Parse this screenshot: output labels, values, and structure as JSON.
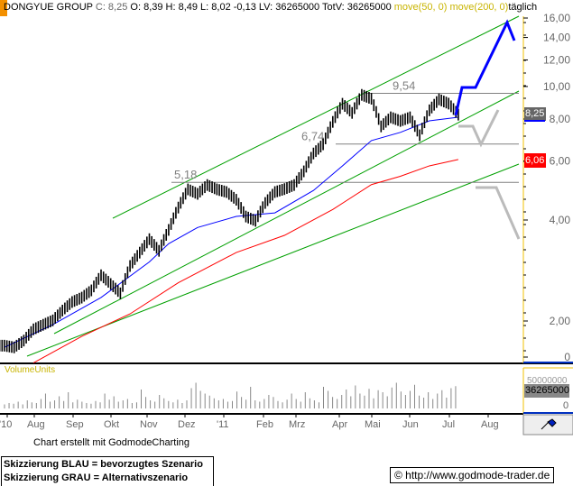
{
  "header": {
    "name": "DONGYUE GROUP",
    "c_label": "C: 8,25",
    "rest": "O: 8,39 H: 8,49 L: 8,02 -0,13 LV: 36265000 TotV: 36265000",
    "ma50": "move(50, 0)",
    "ma200": "move(200, 0)",
    "period": "täglich"
  },
  "chart_data": {
    "type": "line",
    "title": "DONGYUE GROUP",
    "yticks": [
      "16,00",
      "14,00",
      "12,00",
      "10,00",
      "8,00",
      "6,00",
      "4,00",
      "2,00",
      "0"
    ],
    "ytick_values": [
      16,
      14,
      12,
      10,
      8,
      6,
      4,
      2,
      0
    ],
    "xticks": [
      "'10",
      "Aug",
      "Sep",
      "Okt",
      "Nov",
      "Dez",
      "'11",
      "Feb",
      "Mrz",
      "Apr",
      "Mai",
      "Jun",
      "Jul",
      "Aug"
    ],
    "close": [
      1.69,
      1.67,
      1.75,
      1.89,
      1.95,
      2.01,
      2.15,
      2.28,
      2.35,
      2.47,
      2.74,
      2.58,
      2.42,
      2.92,
      3.2,
      3.51,
      3.24,
      3.74,
      4.36,
      4.94,
      4.79,
      5.09,
      4.94,
      4.85,
      4.6,
      4.1,
      3.98,
      4.5,
      4.85,
      4.95,
      5.09,
      5.59,
      6.32,
      6.73,
      7.85,
      8.89,
      8.35,
      9.45,
      9.2,
      7.61,
      8.1,
      7.9,
      8.1,
      7.16,
      8.5,
      9.16,
      8.9,
      8.25
    ],
    "ma50": [
      [
        0,
        1.67
      ],
      [
        5,
        1.95
      ],
      [
        10,
        2.35
      ],
      [
        15,
        3.0
      ],
      [
        17,
        3.4
      ],
      [
        20,
        3.8
      ],
      [
        24,
        4.1
      ],
      [
        28,
        4.2
      ],
      [
        32,
        4.9
      ],
      [
        35,
        5.8
      ],
      [
        38,
        6.9
      ],
      [
        41,
        7.3
      ],
      [
        44,
        7.9
      ],
      [
        47,
        8.1
      ]
    ],
    "ma200": [
      [
        3,
        1.5
      ],
      [
        8,
        1.8
      ],
      [
        13,
        2.1
      ],
      [
        18,
        2.6
      ],
      [
        24,
        3.2
      ],
      [
        29,
        3.6
      ],
      [
        34,
        4.3
      ],
      [
        38,
        5.1
      ],
      [
        41,
        5.4
      ],
      [
        44,
        5.8
      ],
      [
        47,
        6.06
      ]
    ],
    "levels": [
      {
        "label": "9,54",
        "value": 9.54
      },
      {
        "label": "6,74",
        "value": 6.74
      },
      {
        "label": "5,18",
        "value": 5.18
      }
    ],
    "last_price_label": "8,25",
    "ma200_label": "6,06",
    "volume": {
      "label": "VolumeUnits",
      "max_label": "50000000",
      "last_label": "36265000",
      "zero_label": "0",
      "values_mio": [
        6,
        8,
        7,
        10,
        6,
        12,
        9,
        8,
        14,
        22,
        10,
        12,
        18,
        11,
        24,
        9,
        13,
        10,
        8,
        7,
        11,
        9,
        22,
        13,
        18,
        10,
        12,
        14,
        8,
        9,
        28,
        17,
        12,
        10,
        20,
        15,
        11,
        9,
        13,
        8,
        12,
        30,
        38,
        26,
        22,
        19,
        15,
        12,
        14,
        10,
        11,
        25,
        17,
        13,
        32,
        12,
        10,
        14,
        20,
        17,
        11,
        9,
        13,
        22,
        14,
        10,
        24,
        15,
        12,
        9,
        32,
        26,
        17,
        14,
        20,
        28,
        18,
        34,
        22,
        19,
        29,
        15,
        27,
        24,
        18,
        31,
        38,
        25,
        20,
        26,
        35,
        19,
        16,
        24,
        14,
        22,
        27,
        16,
        30,
        33
      ]
    }
  },
  "footer": {
    "credit": "Chart erstellt mit GodmodeCharting",
    "legend_blue": "Skizzierung BLAU = bevorzugtes Szenario",
    "legend_gray": "Skizzierung GRAU = Alternativszenario",
    "copyright": "© http://www.godmode-trader.de"
  },
  "colors": {
    "ma50": "#0000ff",
    "ma200": "#ff0000",
    "channel": "#00a000",
    "level": "#808080",
    "scenario_blue": "#0000ff",
    "scenario_gray": "#bbbbbb"
  }
}
